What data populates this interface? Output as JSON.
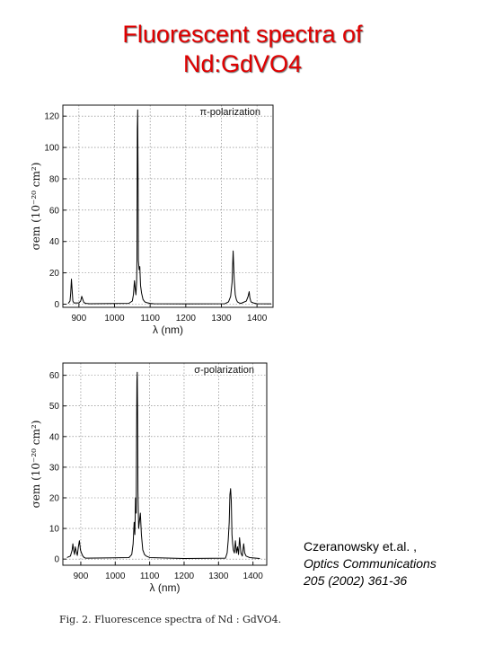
{
  "title": {
    "line1": "Fluorescent spectra of",
    "line2": "Nd:GdVO4"
  },
  "citation": {
    "authors": "Czeranowsky et.al. ,",
    "journal": "Optics Communications",
    "ref": "205 (2002) 361-36"
  },
  "caption": "Fig. 2. Fluorescence spectra of Nd : GdVO4.",
  "chart_data": [
    {
      "type": "line",
      "title": "π-polarization",
      "xlabel": "λ (nm)",
      "ylabel": "σem (10⁻²⁰ cm²)",
      "xlim": [
        855,
        1445
      ],
      "ylim": [
        -2,
        127
      ],
      "xticks": [
        900,
        1000,
        1100,
        1200,
        1300,
        1400
      ],
      "yticks": [
        0,
        20,
        40,
        60,
        80,
        100,
        120
      ],
      "grid": true,
      "series": [
        {
          "x": [
            870,
            875,
            877,
            879,
            881,
            883,
            886,
            900,
            905,
            908,
            911,
            914,
            920,
            930,
            1040,
            1050,
            1053,
            1056,
            1058,
            1060,
            1062,
            1063,
            1064,
            1065,
            1066,
            1067,
            1069,
            1071,
            1073,
            1076,
            1080,
            1085,
            1090,
            1100,
            1110,
            1200,
            1310,
            1320,
            1326,
            1330,
            1333,
            1336,
            1339,
            1342,
            1345,
            1350,
            1355,
            1360,
            1370,
            1375,
            1378,
            1380,
            1383,
            1390,
            1400,
            1440
          ],
          "y": [
            0.5,
            2,
            7,
            16,
            9,
            2,
            0.8,
            0.8,
            2,
            5,
            3,
            1,
            0.5,
            0.3,
            0.5,
            2,
            6,
            15,
            10,
            6,
            14,
            28,
            112,
            124,
            88,
            28,
            22,
            24,
            12,
            7,
            3,
            1.5,
            1,
            0.5,
            0.3,
            0.2,
            0.3,
            1.5,
            5,
            14,
            34,
            16,
            6,
            3,
            1.5,
            0.8,
            0.5,
            1,
            2,
            5,
            8,
            4,
            1.5,
            0.8,
            0.3,
            0.2
          ]
        }
      ]
    },
    {
      "type": "line",
      "title": "σ-polarization",
      "xlabel": "λ (nm)",
      "ylabel": "σem (10⁻²⁰ cm²)",
      "xlim": [
        848,
        1440
      ],
      "ylim": [
        -2,
        64
      ],
      "xticks": [
        900,
        1000,
        1100,
        1200,
        1300,
        1400
      ],
      "yticks": [
        0,
        10,
        20,
        30,
        40,
        50,
        60
      ],
      "grid": true,
      "series": [
        {
          "x": [
            860,
            870,
            875,
            877,
            879,
            882,
            884,
            887,
            890,
            893,
            896,
            899,
            902,
            906,
            910,
            915,
            1040,
            1048,
            1052,
            1055,
            1057,
            1059,
            1061,
            1062,
            1063,
            1064,
            1065,
            1066,
            1068,
            1070,
            1073,
            1076,
            1080,
            1085,
            1090,
            1100,
            1200,
            1320,
            1325,
            1328,
            1331,
            1333,
            1335,
            1337,
            1339,
            1341,
            1343,
            1346,
            1349,
            1352,
            1355,
            1358,
            1361,
            1365,
            1369,
            1373,
            1376,
            1380,
            1390,
            1420
          ],
          "y": [
            0.5,
            1,
            3,
            5,
            3,
            1.5,
            4,
            2.5,
            1.2,
            4,
            6,
            3,
            2,
            1,
            0.5,
            0.3,
            0.5,
            1.5,
            5,
            12,
            8,
            20,
            15,
            40,
            58,
            61,
            48,
            22,
            10,
            12,
            15,
            8,
            3,
            1.5,
            1,
            0.5,
            0.2,
            0.3,
            2,
            6,
            12,
            21,
            23,
            19,
            8,
            5,
            3,
            2,
            6,
            2,
            4,
            1.5,
            7,
            2,
            1,
            5,
            2,
            1,
            0.5,
            0.2
          ]
        }
      ]
    }
  ]
}
